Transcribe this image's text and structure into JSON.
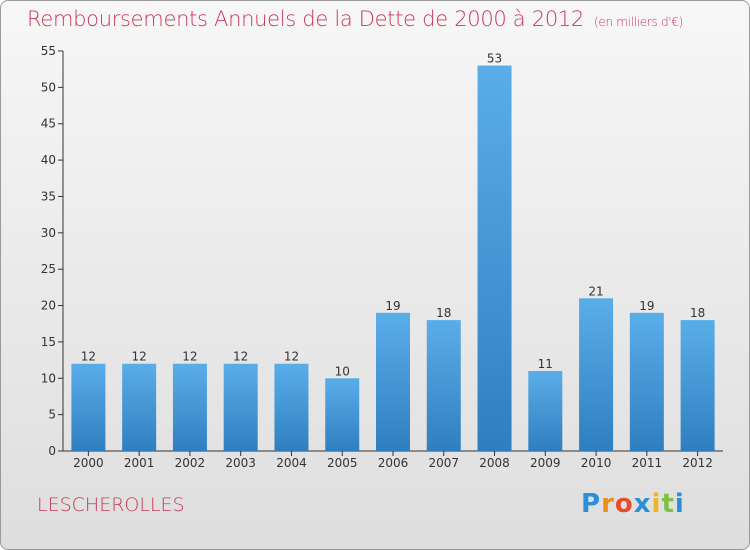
{
  "header": {
    "title": "Remboursements Annuels de la Dette de 2000 à 2012",
    "unit": "(en milliers d'€)"
  },
  "footer": {
    "commune": "LESCHEROLLES",
    "logo_text": "Proxiti",
    "logo_colors": [
      "#2d8fd8",
      "#f08c1c",
      "#e84a2a",
      "#2d8fd8",
      "#f0b41c",
      "#7cc242"
    ]
  },
  "chart_data": {
    "type": "bar",
    "categories": [
      "2000",
      "2001",
      "2002",
      "2003",
      "2004",
      "2005",
      "2006",
      "2007",
      "2008",
      "2009",
      "2010",
      "2011",
      "2012"
    ],
    "values": [
      12,
      12,
      12,
      12,
      12,
      10,
      19,
      18,
      53,
      11,
      21,
      19,
      18
    ],
    "title": "Remboursements Annuels de la Dette de 2000 à 2012",
    "ylim": [
      0,
      55
    ],
    "yticks": [
      0,
      5,
      10,
      15,
      20,
      25,
      30,
      35,
      40,
      45,
      50,
      55
    ],
    "grid": false,
    "bar_color_top": "#5aaee8",
    "bar_color_bottom": "#2f7fc0"
  }
}
